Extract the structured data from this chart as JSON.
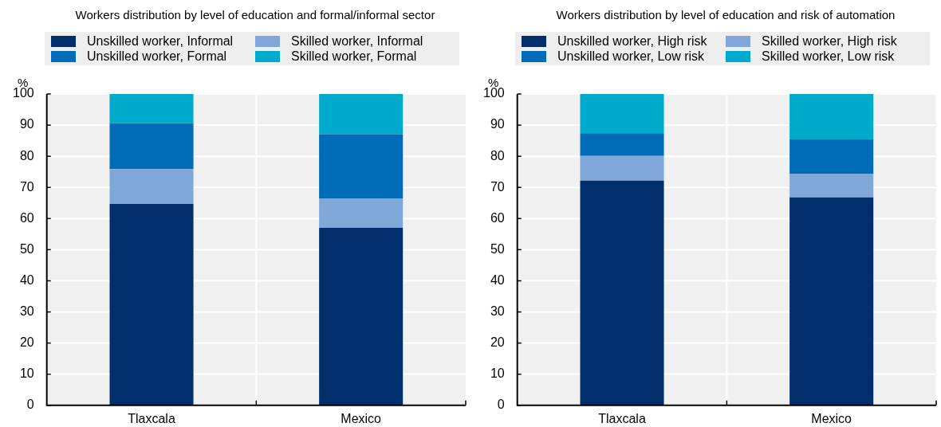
{
  "chart_data": [
    {
      "type": "bar",
      "title": "Workers distribution by level of education and formal/informal sector",
      "ylabel": "%",
      "categories": [
        "Tlaxcala",
        "Mexico"
      ],
      "stacked": true,
      "ylim": [
        0,
        100
      ],
      "yticks": [
        0,
        10,
        20,
        30,
        40,
        50,
        60,
        70,
        80,
        90,
        100
      ],
      "grid": true,
      "legend": "top",
      "series": [
        {
          "name": "Unskilled worker, Informal",
          "color": "#002f6c",
          "values": [
            64.7,
            57.0
          ]
        },
        {
          "name": "Skilled worker, Informal",
          "color": "#7fa8d9",
          "values": [
            11.2,
            9.5
          ]
        },
        {
          "name": "Unskilled worker, Formal",
          "color": "#006bb6",
          "values": [
            14.7,
            20.6
          ]
        },
        {
          "name": "Skilled worker, Formal",
          "color": "#00aacc",
          "values": [
            9.4,
            12.9
          ]
        }
      ]
    },
    {
      "type": "bar",
      "title": "Workers distribution by level of education and risk of automation",
      "ylabel": "%",
      "categories": [
        "Tlaxcala",
        "Mexico"
      ],
      "stacked": true,
      "ylim": [
        0,
        100
      ],
      "yticks": [
        0,
        10,
        20,
        30,
        40,
        50,
        60,
        70,
        80,
        90,
        100
      ],
      "grid": true,
      "legend": "top",
      "series": [
        {
          "name": "Unskilled worker, High risk",
          "color": "#002f6c",
          "values": [
            72.2,
            66.8
          ]
        },
        {
          "name": "Skilled worker, High risk",
          "color": "#7fa8d9",
          "values": [
            7.9,
            7.6
          ]
        },
        {
          "name": "Unskilled worker, Low risk",
          "color": "#006bb6",
          "values": [
            7.3,
            11.0
          ]
        },
        {
          "name": "Skilled worker, Low risk",
          "color": "#00aacc",
          "values": [
            12.6,
            14.6
          ]
        }
      ]
    }
  ]
}
